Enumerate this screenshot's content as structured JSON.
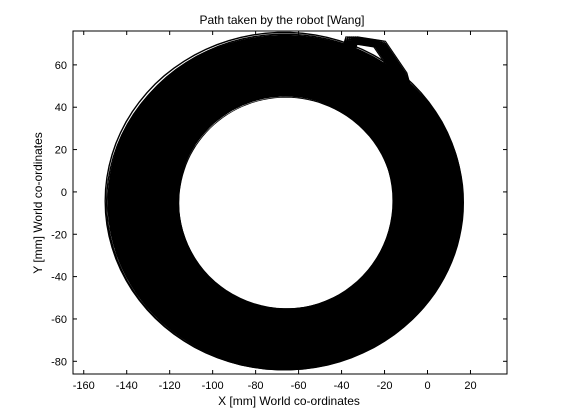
{
  "chart_data": {
    "type": "line",
    "title": "Path taken by the robot [Wang]",
    "xlabel": "X [mm] World co-ordinates",
    "ylabel": "Y [mm] World co-ordinates",
    "xlim": [
      -165,
      37
    ],
    "ylim": [
      -86,
      76
    ],
    "xticks": [
      -160,
      -140,
      -120,
      -100,
      -80,
      -60,
      -40,
      -20,
      0,
      20
    ],
    "yticks": [
      -80,
      -60,
      -40,
      -20,
      0,
      20,
      40,
      60
    ],
    "grid": false,
    "legend": "none",
    "colors": {
      "line": "#000000",
      "background": "#ffffff",
      "axes": "#000000"
    },
    "series": [
      {
        "description_of_shape": "many overlapping closed loops forming a thick ring",
        "center": [
          -66,
          -5
        ],
        "outer_radius_x": 83,
        "outer_radius_y": 79,
        "inner_radius_x": 50,
        "inner_radius_y": 50,
        "gap_start_point": [
          -40,
          60
        ],
        "tail_points": [
          [
            -40,
            55
          ],
          [
            -35,
            72
          ],
          [
            -22,
            70
          ],
          [
            -12,
            55
          ],
          [
            -8,
            40
          ],
          [
            -15,
            30
          ],
          [
            -28,
            38
          ],
          [
            -40,
            50
          ]
        ]
      }
    ]
  }
}
